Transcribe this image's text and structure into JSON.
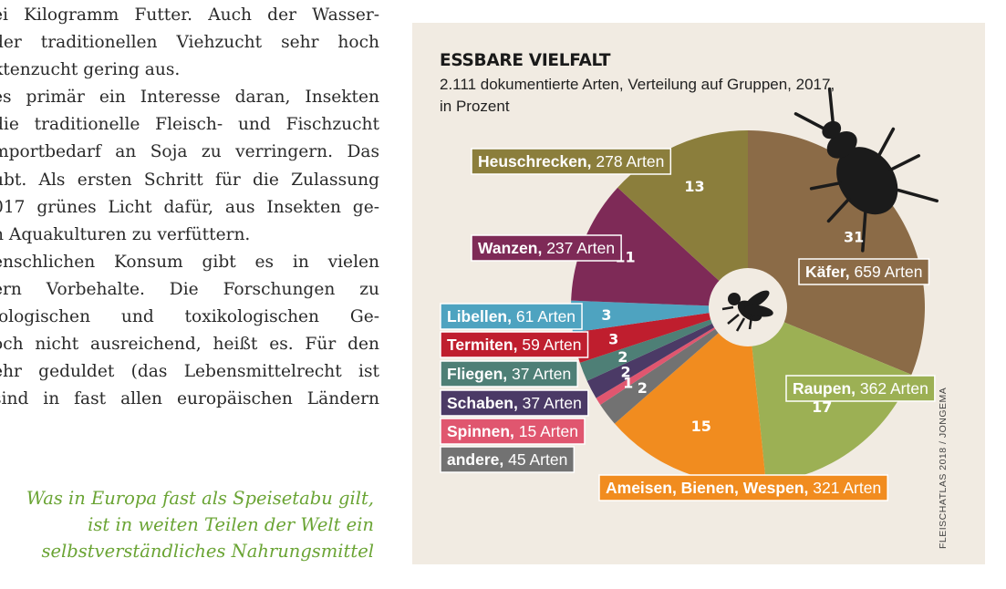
{
  "article": {
    "lines": [
      "ei Kilogramm Futter. Auch der Wasser-",
      "der traditionellen Viehzucht sehr hoch",
      "ktenzucht gering aus.",
      "es primär ein Interesse daran, Insekten",
      "die traditionelle Fleisch- und Fischzucht",
      "mportbedarf an Soja zu verringern. Das",
      "ubt. Als ersten Schritt für die Zulassung",
      "017 grünes Licht dafür, aus Insekten ge-",
      "n Aquakulturen zu verfüttern.",
      "enschlichen Konsum gibt es in vielen",
      "ern Vorbehalte. Die Forschungen zu",
      "iologischen und toxikologischen Ge-",
      "och nicht ausreichend, heißt es. Für den",
      "ehr geduldet (das Lebensmittelrecht ist",
      "sind in fast allen europäischen Ländern"
    ],
    "quote": [
      "Was in Europa fast als Speisetabu gilt,",
      "ist in weiten Teilen der Welt ein",
      "selbstverständliches Nahrungsmittel"
    ]
  },
  "credit": "FLEISCHATLAS 2018 / JONGEMA",
  "colors": {
    "panel_bg": "#f1ebe2",
    "text_green": "#6aa434"
  },
  "icons": [
    "beetle-icon",
    "fly-icon"
  ],
  "chart_data": {
    "type": "pie",
    "title": "ESSBARE VIELFALT",
    "subtitle_lines": [
      "2.111 dokumentierte Arten, Verteilung auf Gruppen, 2017,",
      "in Prozent"
    ],
    "total_species": 2111,
    "unit": "Prozent",
    "slices": [
      {
        "name": "Käfer",
        "species": 659,
        "species_label": "659 Arten",
        "percent": 31,
        "percent_label": "31",
        "color": "#8b6b47"
      },
      {
        "name": "Raupen",
        "species": 362,
        "species_label": "362 Arten",
        "percent": 17,
        "percent_label": "17",
        "color": "#9cb054"
      },
      {
        "name": "Ameisen, Bienen, Wespen",
        "species": 321,
        "species_label": "321 Arten",
        "percent": 15,
        "percent_label": "15",
        "color": "#f18c1f"
      },
      {
        "name": "andere",
        "species": 45,
        "species_label": "45 Arten",
        "percent": 2,
        "percent_label": "2",
        "color": "#727272"
      },
      {
        "name": "Spinnen",
        "species": 15,
        "species_label": "15 Arten",
        "percent": 1,
        "percent_label": "1",
        "color": "#e0566f"
      },
      {
        "name": "Schaben",
        "species": 37,
        "species_label": "37 Arten",
        "percent": 2,
        "percent_label": "2",
        "color": "#4b3a66"
      },
      {
        "name": "Fliegen",
        "species": 37,
        "species_label": "37 Arten",
        "percent": 2,
        "percent_label": "2",
        "color": "#4e7f76"
      },
      {
        "name": "Termiten",
        "species": 59,
        "species_label": "59 Arten",
        "percent": 3,
        "percent_label": "3",
        "color": "#bf1e2e"
      },
      {
        "name": "Libellen",
        "species": 61,
        "species_label": "61 Arten",
        "percent": 3,
        "percent_label": "3",
        "color": "#4ea3c0"
      },
      {
        "name": "Wanzen",
        "species": 237,
        "species_label": "237 Arten",
        "percent": 11,
        "percent_label": "11",
        "color": "#7e2a57"
      },
      {
        "name": "Heuschrecken",
        "species": 278,
        "species_label": "278 Arten",
        "percent": 13,
        "percent_label": "13",
        "color": "#8b7e3c"
      }
    ]
  }
}
